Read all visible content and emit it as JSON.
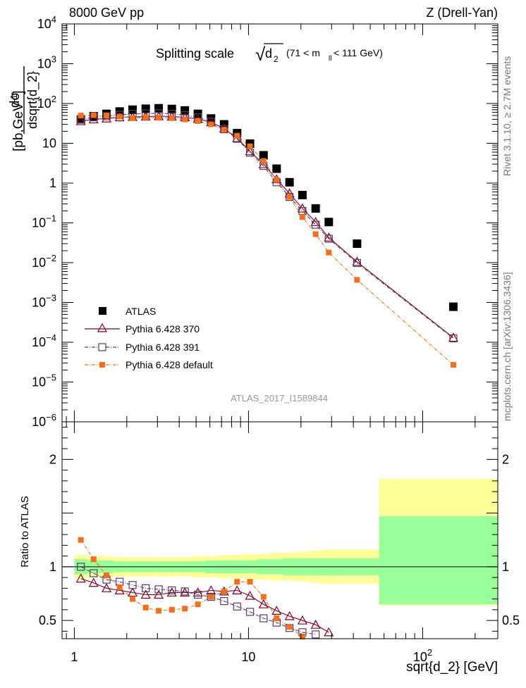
{
  "header": {
    "left": "8000 GeV pp",
    "right": "Z (Drell-Yan)"
  },
  "plot_title": {
    "main": "Splitting scale",
    "sqrt_symbol": "√",
    "var": "d",
    "var_sub": "2",
    "range_open": "(71 < m",
    "range_sub": "ll",
    "range_close": " < 111 GeV)"
  },
  "side_labels": {
    "rivet": "Rivet 3.1.10, ≥ 2.7M events",
    "mcplots": "mcplots.cern.ch [arXiv:1306.3436]"
  },
  "watermark": "ATLAS_2017_I1589844",
  "ylabel_main": {
    "numerator": "dσ",
    "denominator": "dsqrt{d_2}",
    "unit_open": "[pb,GeV",
    "unit_exp": "-1",
    "unit_close": "]"
  },
  "ylabel_ratio": "Ratio to ATLAS",
  "xlabel": "sqrt{d_2} [GeV]",
  "legend": [
    {
      "label": "ATLAS"
    },
    {
      "label": "Pythia 6.428 370"
    },
    {
      "label": "Pythia 6.428 391"
    },
    {
      "label": "Pythia 6.428 default"
    }
  ],
  "y_tick_labels": [
    {
      "value": 10000,
      "mant": "10",
      "exp": "4"
    },
    {
      "value": 1000,
      "mant": "10",
      "exp": "3"
    },
    {
      "value": 100,
      "mant": "10",
      "exp": "2"
    },
    {
      "value": 10,
      "mant": "10",
      "exp": ""
    },
    {
      "value": 1,
      "mant": "1",
      "exp": ""
    },
    {
      "value": 0.1,
      "mant": "10",
      "exp": "−1"
    },
    {
      "value": 0.01,
      "mant": "10",
      "exp": "−2"
    },
    {
      "value": 0.001,
      "mant": "10",
      "exp": "−3"
    },
    {
      "value": 0.0001,
      "mant": "10",
      "exp": "−4"
    },
    {
      "value": 1e-05,
      "mant": "10",
      "exp": "−5"
    },
    {
      "value": 1e-06,
      "mant": "10",
      "exp": "−6"
    }
  ],
  "x_tick_labels": [
    {
      "value": 1,
      "mant": "1",
      "exp": ""
    },
    {
      "value": 10,
      "mant": "10",
      "exp": ""
    },
    {
      "value": 100,
      "mant": "10",
      "exp": "2"
    }
  ],
  "ratio_tick_labels": [
    {
      "value": 2,
      "label": "2"
    },
    {
      "value": 1,
      "label": "1"
    },
    {
      "value": 0.5,
      "label": "0.5"
    }
  ],
  "chart_data": {
    "type": "scatter",
    "xscale": "log",
    "yscale": "log",
    "xlim": [
      0.85,
      270
    ],
    "ylim": [
      1e-06,
      10000
    ],
    "ratio_ylim": [
      0.33,
      2.35
    ],
    "colors": {
      "atlas": "#000000",
      "p370": "#800020",
      "p391": "#5a3a6a",
      "pdefault": "#f07020",
      "band_inner": "#99ff99",
      "band_outer": "#ffff99"
    },
    "x": [
      1.09,
      1.29,
      1.53,
      1.82,
      2.16,
      2.57,
      3.05,
      3.63,
      4.31,
      5.12,
      6.09,
      7.24,
      8.6,
      10.2,
      12.2,
      14.5,
      17.2,
      20.4,
      24.3,
      28.9,
      42.0,
      150.0
    ],
    "bin_edges": [
      1.0,
      1.19,
      1.41,
      1.68,
      2.0,
      2.37,
      2.82,
      3.35,
      3.98,
      4.73,
      5.62,
      6.68,
      7.94,
      9.44,
      11.2,
      13.3,
      15.8,
      18.8,
      22.4,
      26.6,
      31.6,
      56.2,
      270.0
    ],
    "series": [
      {
        "name": "ATLAS",
        "key": "atlas",
        "values": [
          40,
          48,
          55,
          63,
          70,
          74,
          76,
          73,
          67,
          55,
          42,
          30,
          18,
          9.8,
          5.0,
          2.3,
          1.05,
          0.5,
          0.23,
          0.105,
          0.03,
          0.00078
        ]
      },
      {
        "name": "Pythia 6.428 370",
        "key": "p370",
        "values": [
          36,
          40,
          42,
          45,
          46,
          47,
          48,
          47,
          45,
          41,
          34,
          23.5,
          13.5,
          6.3,
          3.0,
          1.25,
          0.55,
          0.23,
          0.105,
          0.043,
          0.0105,
          0.00013
        ]
      },
      {
        "name": "Pythia 6.428 391",
        "key": "p391",
        "values": [
          40,
          45,
          48,
          52,
          55,
          56,
          57,
          55,
          51,
          45,
          35,
          22.5,
          13.0,
          5.8,
          2.7,
          1.05,
          0.45,
          0.2,
          0.09,
          0.04,
          0.0098,
          0.000125
        ]
      },
      {
        "name": "Pythia 6.428 default",
        "key": "pdefault",
        "values": [
          50,
          51,
          50,
          47,
          43,
          45,
          44,
          43,
          40,
          36,
          30,
          22,
          15.5,
          8.4,
          3.6,
          1.2,
          0.45,
          0.14,
          0.052,
          0.018,
          0.0037,
          2.7e-05
        ]
      }
    ],
    "ratio_series": [
      {
        "name": "Pythia 6.428 370",
        "key": "p370",
        "values": [
          0.89,
          0.85,
          0.8,
          0.78,
          0.76,
          0.74,
          0.74,
          0.76,
          0.76,
          0.76,
          0.78,
          0.77,
          0.78,
          0.73,
          0.65,
          0.59,
          0.54,
          0.5,
          0.46,
          0.39
        ]
      },
      {
        "name": "Pythia 6.428 391",
        "key": "p391",
        "values": [
          1.0,
          0.94,
          0.88,
          0.86,
          0.83,
          0.8,
          0.79,
          0.78,
          0.77,
          0.74,
          0.72,
          0.68,
          0.63,
          0.58,
          0.52,
          0.48,
          0.43,
          0.39,
          0.37
        ]
      },
      {
        "name": "Pythia 6.428 default",
        "key": "pdefault",
        "values": [
          1.25,
          1.07,
          0.92,
          0.81,
          0.7,
          0.62,
          0.59,
          0.6,
          0.61,
          0.65,
          0.72,
          0.77,
          0.86,
          0.86,
          0.72,
          0.52,
          0.44,
          0.35
        ]
      }
    ],
    "ratio_band_outer": [
      [
        0.89,
        1.11
      ],
      [
        0.9,
        1.1
      ],
      [
        0.9,
        1.1
      ],
      [
        0.91,
        1.09
      ],
      [
        0.91,
        1.09
      ],
      [
        0.91,
        1.09
      ],
      [
        0.91,
        1.09
      ],
      [
        0.91,
        1.09
      ],
      [
        0.91,
        1.09
      ],
      [
        0.9,
        1.1
      ],
      [
        0.9,
        1.1
      ],
      [
        0.89,
        1.11
      ],
      [
        0.89,
        1.11
      ],
      [
        0.88,
        1.12
      ],
      [
        0.88,
        1.12
      ],
      [
        0.87,
        1.13
      ],
      [
        0.87,
        1.13
      ],
      [
        0.86,
        1.14
      ],
      [
        0.85,
        1.15
      ],
      [
        0.84,
        1.16
      ],
      [
        0.84,
        1.16
      ],
      [
        0.64,
        1.82
      ]
    ],
    "ratio_band_inner": [
      [
        0.93,
        1.07
      ],
      [
        0.94,
        1.06
      ],
      [
        0.94,
        1.06
      ],
      [
        0.95,
        1.05
      ],
      [
        0.95,
        1.05
      ],
      [
        0.95,
        1.05
      ],
      [
        0.95,
        1.05
      ],
      [
        0.95,
        1.05
      ],
      [
        0.95,
        1.05
      ],
      [
        0.95,
        1.05
      ],
      [
        0.94,
        1.06
      ],
      [
        0.94,
        1.06
      ],
      [
        0.94,
        1.06
      ],
      [
        0.94,
        1.06
      ],
      [
        0.93,
        1.07
      ],
      [
        0.93,
        1.07
      ],
      [
        0.92,
        1.08
      ],
      [
        0.92,
        1.08
      ],
      [
        0.92,
        1.08
      ],
      [
        0.92,
        1.08
      ],
      [
        0.92,
        1.08
      ],
      [
        0.65,
        1.47
      ]
    ]
  }
}
